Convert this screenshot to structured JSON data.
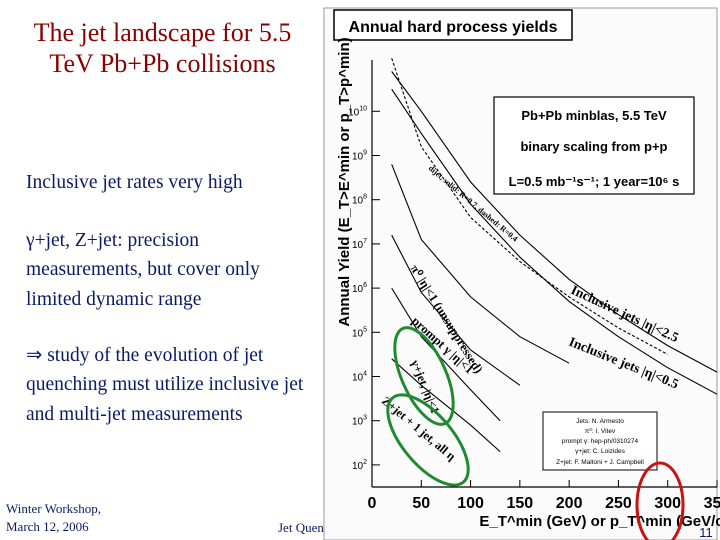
{
  "slide": {
    "title": "The jet landscape for 5.5 TeV Pb+Pb collisions",
    "bullets": [
      "Inclusive jet rates very high",
      "γ+jet, Z+jet: precision measurements, but cover only limited dynamic range",
      "⇒ study of the evolution of jet quenching must utilize inclusive jet and multi-jet measurements"
    ],
    "footer_left": "Winter Workshop, March 12, 2006",
    "footer_center": "Jet Quenc",
    "page_number": "11"
  },
  "chart_data": {
    "type": "line",
    "title": "Annual hard process yields",
    "xlabel": "E_T^min (GeV)  or  p_T^min (GeV/c)",
    "ylabel": "Annual Yield (E_T>E^min or p_T>p^min)",
    "xlim": [
      0,
      350
    ],
    "ylim_log10": [
      1.5,
      11.5
    ],
    "xticks": [
      "0",
      "50",
      "100",
      "150",
      "200",
      "250",
      "300",
      "350"
    ],
    "yticks": [
      {
        "label": "10",
        "exp": "2",
        "val": 2
      },
      {
        "label": "10",
        "exp": "3",
        "val": 3
      },
      {
        "label": "10",
        "exp": "4",
        "val": 4
      },
      {
        "label": "10",
        "exp": "5",
        "val": 5
      },
      {
        "label": "10",
        "exp": "6",
        "val": 6
      },
      {
        "label": "10",
        "exp": "7",
        "val": 7
      },
      {
        "label": "10",
        "exp": "8",
        "val": 8
      },
      {
        "label": "10",
        "exp": "9",
        "val": 9
      },
      {
        "label": "10",
        "exp": "10",
        "val": 10
      }
    ],
    "info_box": [
      "Pb+Pb minblas, 5.5 TeV",
      "binary scaling from p+p",
      "L=0.5 mb⁻¹s⁻¹; 1 year=10⁶ s"
    ],
    "credit_box": [
      "Jets: N. Armesto",
      "π⁰: I. Vitev",
      "prompt γ: hep-ph/0310274",
      "γ+jet: C. Loizides",
      "Z+jet: F. Maltoni + J. Campbell"
    ],
    "series": [
      {
        "name": "Inclusive jets |η|<2.5",
        "x": [
          20,
          50,
          100,
          150,
          200,
          250,
          300,
          350
        ],
        "log10_y": [
          10.9,
          10.0,
          8.4,
          7.2,
          6.2,
          5.4,
          4.7,
          4.1
        ]
      },
      {
        "name": "Inclusive jets |η|<0.5",
        "x": [
          20,
          50,
          100,
          150,
          200,
          250,
          300,
          350
        ],
        "log10_y": [
          10.5,
          9.5,
          7.9,
          6.7,
          5.7,
          4.9,
          4.2,
          3.6
        ]
      },
      {
        "name": "Dijet, solid: R=0.7, dashed: R=0.4",
        "x": [
          20,
          50,
          100,
          150,
          200,
          250,
          300
        ],
        "log10_y": [
          11.2,
          9.2,
          7.6,
          6.6,
          5.8,
          5.1,
          4.5
        ]
      },
      {
        "name": "π⁰ |η|<1 (unsuppressed)",
        "x": [
          20,
          50,
          100,
          150,
          200
        ],
        "log10_y": [
          8.8,
          7.1,
          5.8,
          4.9,
          4.3
        ]
      },
      {
        "name": "prompt γ |η|<1",
        "x": [
          20,
          50,
          100,
          150
        ],
        "log10_y": [
          7.2,
          5.9,
          4.6,
          3.8
        ]
      },
      {
        "name": "γ+jet |η|<1",
        "x": [
          20,
          50,
          100,
          130
        ],
        "log10_y": [
          6.0,
          4.9,
          3.7,
          3.0
        ]
      },
      {
        "name": "Z+jet, all η",
        "x": [
          20,
          50,
          100,
          130
        ],
        "log10_y": [
          4.4,
          3.8,
          2.9,
          2.3
        ]
      }
    ],
    "annotations": [
      "Inclusive jets |η|<2.5",
      "Inclusive jets |η|<0.5",
      "π⁰ |η|<1 (unsuppressed)",
      "prompt γ |η|<1",
      "γ+jet, |η|<1",
      "Z+jet + 1 jet, all η",
      "dijet, solid: R=0.7, dashed: R=0.4"
    ],
    "highlight_color": "#1f8a2f",
    "circle_color": "#cc1111"
  }
}
